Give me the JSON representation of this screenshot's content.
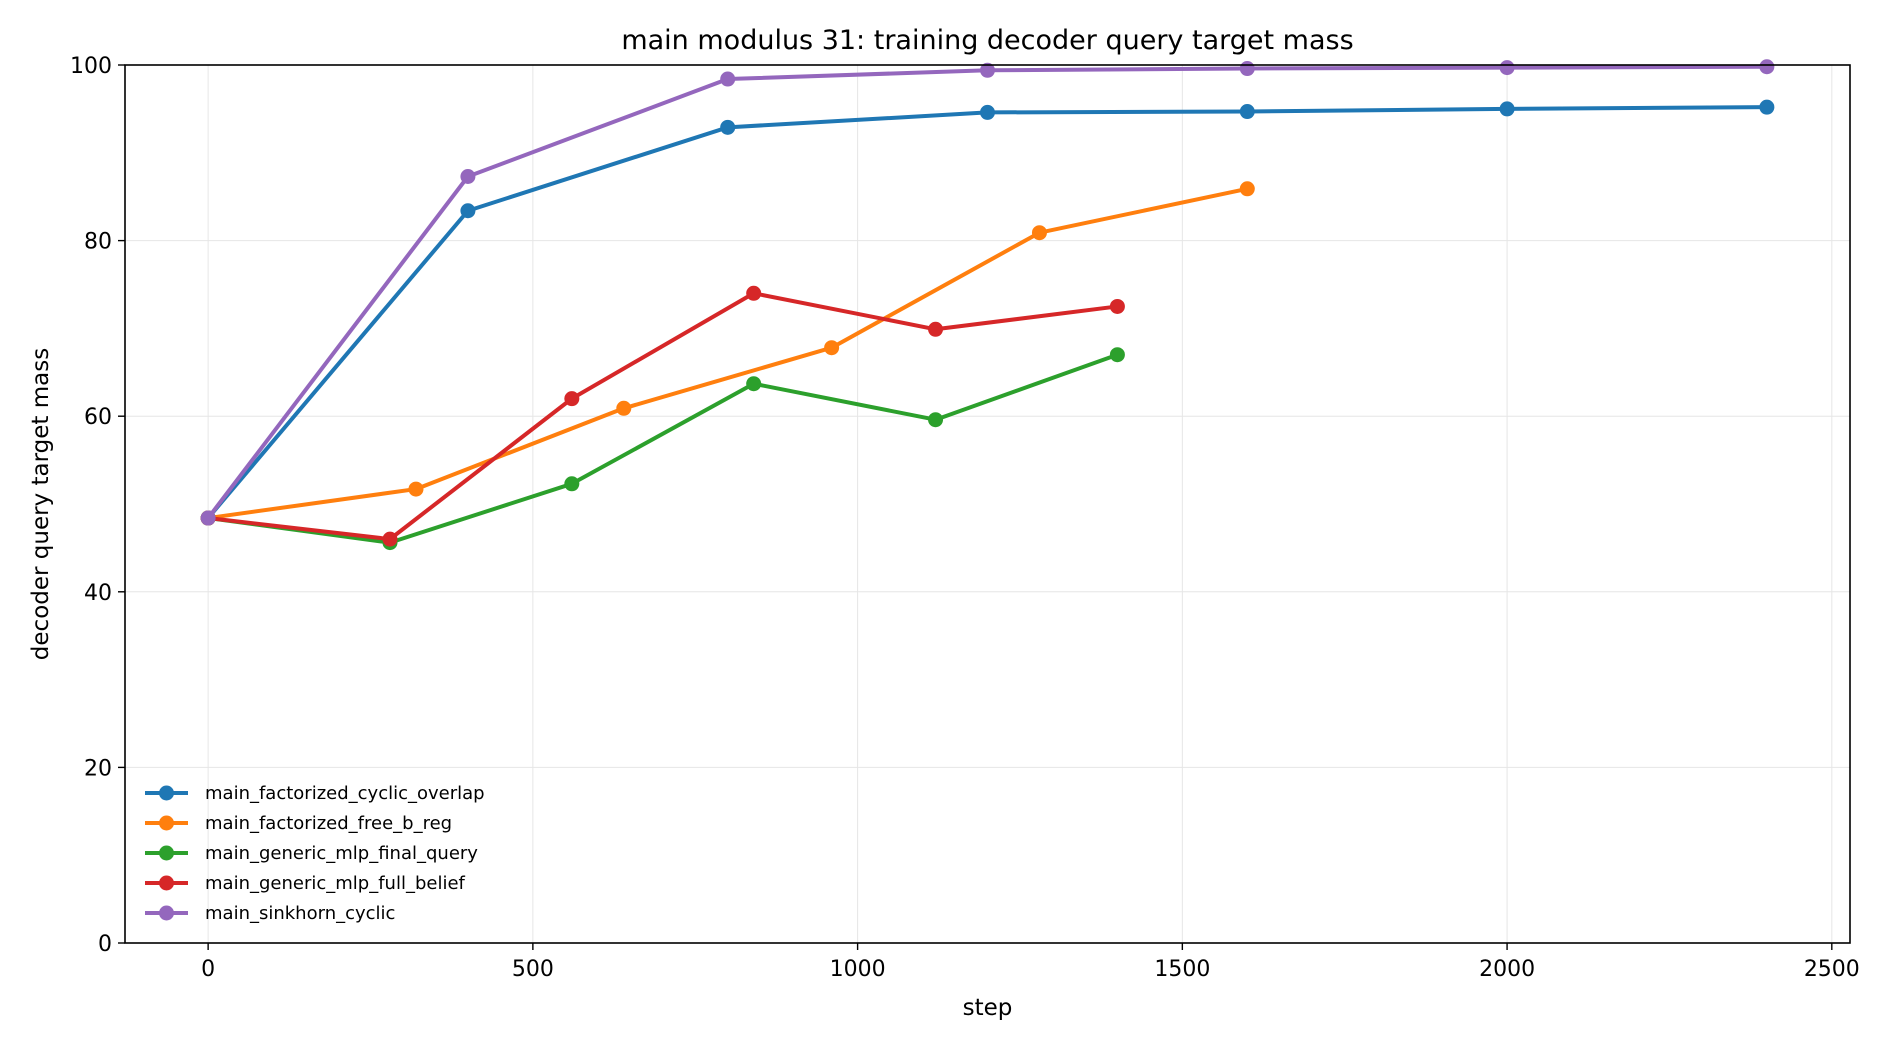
{
  "chart_data": {
    "type": "line",
    "title": "main modulus 31: training decoder query target mass",
    "xlabel": "step",
    "ylabel": "decoder query target mass",
    "xlim": [
      -128,
      2528
    ],
    "ylim": [
      0,
      100
    ],
    "xticks": [
      0,
      500,
      1000,
      1500,
      2000,
      2500
    ],
    "yticks": [
      0,
      20,
      40,
      60,
      80,
      100
    ],
    "grid": true,
    "legend_position": "lower-left",
    "series": [
      {
        "name": "main_factorized_cyclic_overlap",
        "color": "#1f77b4",
        "x": [
          0,
          400,
          800,
          1200,
          1600,
          2000,
          2400
        ],
        "y": [
          48.4,
          83.4,
          92.9,
          94.6,
          94.7,
          95.0,
          95.2
        ]
      },
      {
        "name": "main_factorized_free_b_reg",
        "color": "#ff7f0e",
        "x": [
          0,
          320,
          640,
          960,
          1280,
          1600
        ],
        "y": [
          48.4,
          51.7,
          60.9,
          67.8,
          80.9,
          85.9
        ]
      },
      {
        "name": "main_generic_mlp_final_query",
        "color": "#2ca02c",
        "x": [
          0,
          280,
          560,
          840,
          1120,
          1400
        ],
        "y": [
          48.4,
          45.6,
          52.3,
          63.7,
          59.6,
          67.0
        ]
      },
      {
        "name": "main_generic_mlp_full_belief",
        "color": "#d62728",
        "x": [
          0,
          280,
          560,
          840,
          1120,
          1400
        ],
        "y": [
          48.4,
          46.0,
          62.0,
          74.0,
          69.9,
          72.5
        ]
      },
      {
        "name": "main_sinkhorn_cyclic",
        "color": "#9467bd",
        "x": [
          0,
          400,
          800,
          1200,
          1600,
          2000,
          2400
        ],
        "y": [
          48.4,
          87.3,
          98.4,
          99.4,
          99.6,
          99.7,
          99.8
        ]
      }
    ]
  }
}
